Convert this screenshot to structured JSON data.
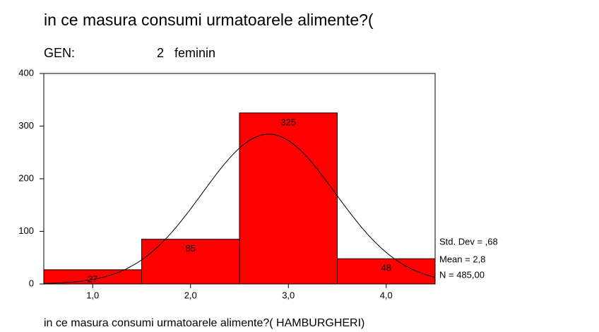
{
  "chart_data": {
    "type": "histogram",
    "title": "in ce masura consumi urmatoarele alimente?(",
    "subtitle_label": "GEN:",
    "subtitle_value": "2   feminin",
    "x_label": "in ce masura consumi urmatoarele alimente?( HAMBURGHERI)",
    "bins": [
      0.5,
      1.5,
      2.5,
      3.5,
      4.5
    ],
    "values": [
      27,
      85,
      325,
      48
    ],
    "color": "#ff0000",
    "xlim": [
      0.5,
      4.5
    ],
    "xticks": [
      {
        "value": 1,
        "label": "1,0"
      },
      {
        "value": 2,
        "label": "2,0"
      },
      {
        "value": 3,
        "label": "3,0"
      },
      {
        "value": 4,
        "label": "4,0"
      }
    ],
    "ylim": [
      0,
      400
    ],
    "yticks": [
      0,
      100,
      200,
      300,
      400
    ],
    "stats": [
      {
        "value": 0.68,
        "label": "Std. Dev = ,68"
      },
      {
        "value": 2.8,
        "label": "Mean = 2,8"
      },
      {
        "value": 485,
        "label": "N = 485,00"
      }
    ]
  }
}
